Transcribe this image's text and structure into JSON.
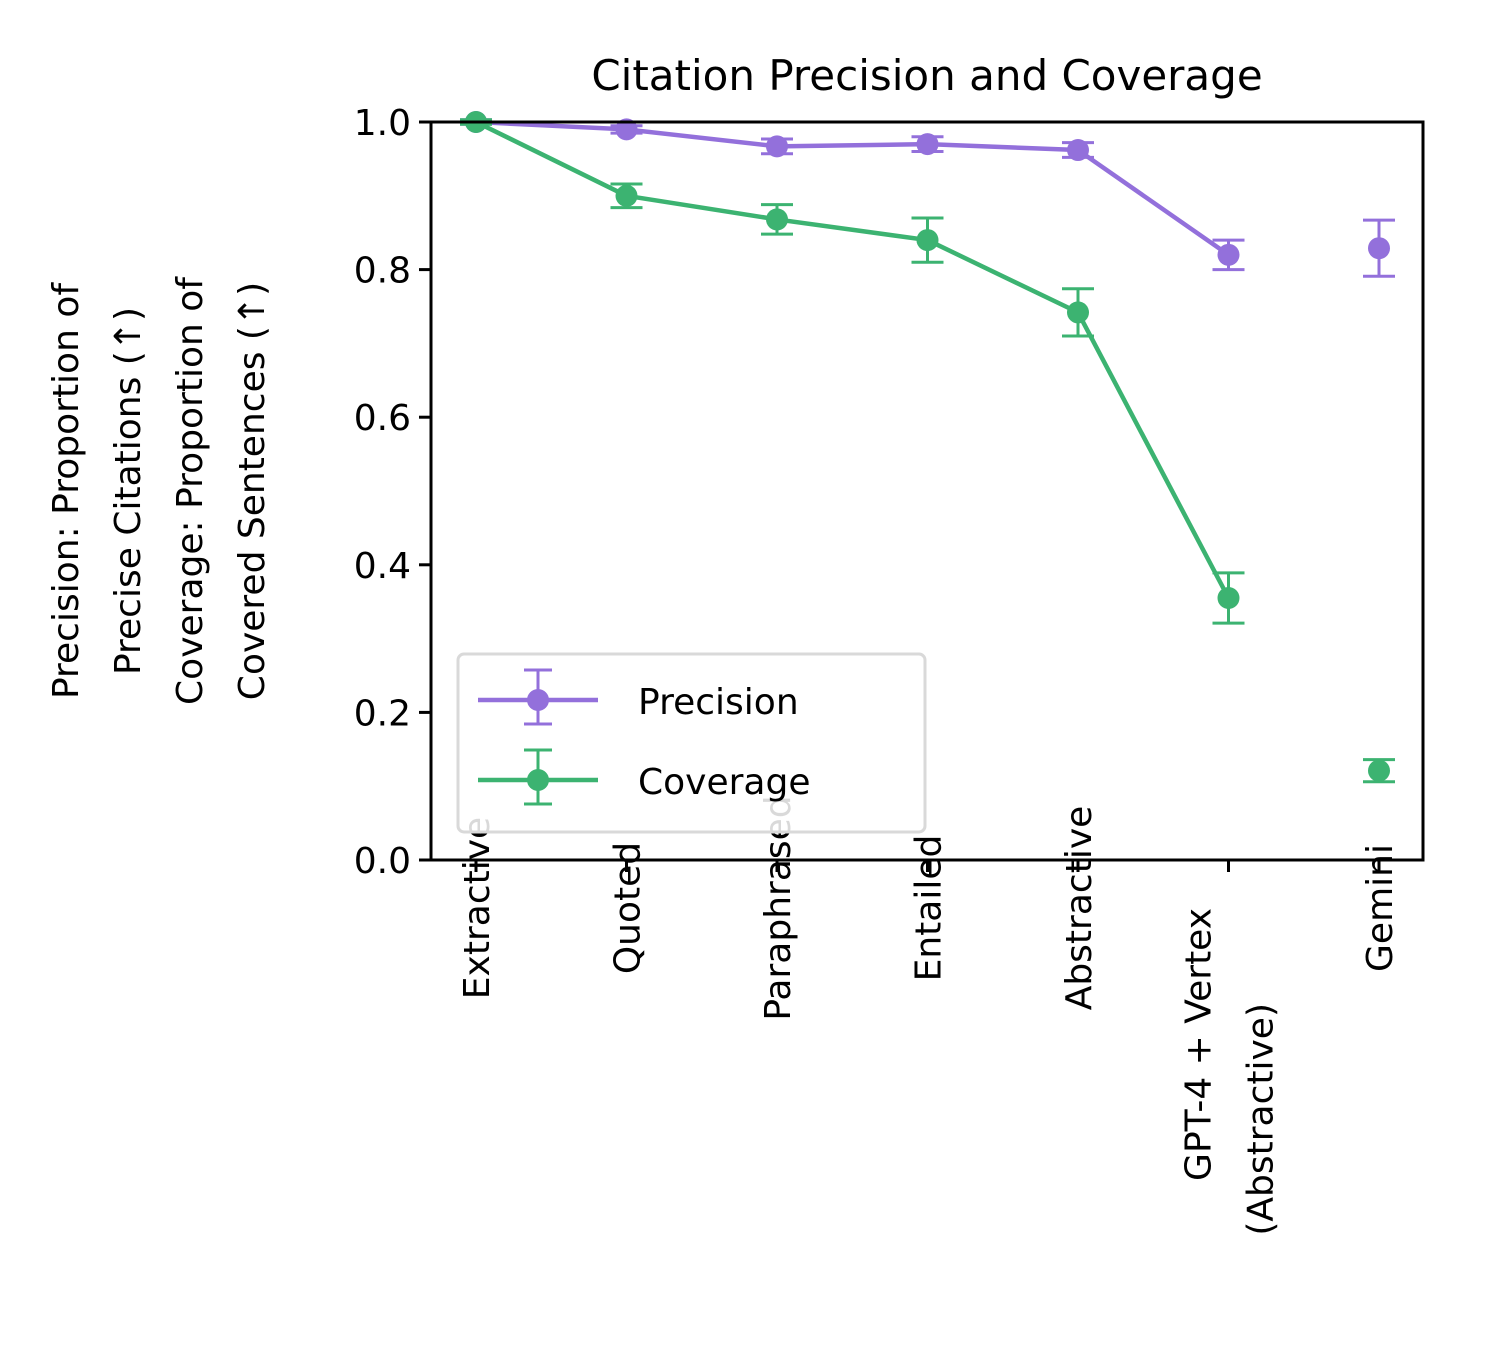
{
  "chart_data": {
    "type": "line",
    "title": "Citation Precision and Coverage",
    "ylabel_lines": [
      "Precision: Proportion of",
      "Precise Citations (↑)",
      "Coverage: Proportion of",
      "Covered Sentences (↑)"
    ],
    "xlabel": "",
    "categories": [
      "Extractive",
      "Quoted",
      "Paraphrased",
      "Entailed",
      "Abstractive",
      "GPT-4 + Vertex\n(Abstractive)",
      "Gemini"
    ],
    "ylim": [
      0.0,
      1.0
    ],
    "yticks": [
      0.0,
      0.2,
      0.4,
      0.6,
      0.8,
      1.0
    ],
    "ytick_labels": [
      "0.0",
      "0.2",
      "0.4",
      "0.6",
      "0.8",
      "1.0"
    ],
    "grid": false,
    "legend_position": "lower-left",
    "series": [
      {
        "name": "Precision",
        "color": "#9370DB",
        "values": [
          1.0,
          0.99,
          0.967,
          0.97,
          0.962,
          0.82,
          0.829
        ],
        "errors": [
          0.003,
          0.005,
          0.01,
          0.01,
          0.01,
          0.02,
          0.038
        ],
        "connected_through": 5
      },
      {
        "name": "Coverage",
        "color": "#3CB371",
        "values": [
          1.0,
          0.9,
          0.868,
          0.84,
          0.742,
          0.355,
          0.121
        ],
        "errors": [
          0.003,
          0.016,
          0.02,
          0.03,
          0.032,
          0.034,
          0.015
        ],
        "connected_through": 5
      }
    ]
  }
}
